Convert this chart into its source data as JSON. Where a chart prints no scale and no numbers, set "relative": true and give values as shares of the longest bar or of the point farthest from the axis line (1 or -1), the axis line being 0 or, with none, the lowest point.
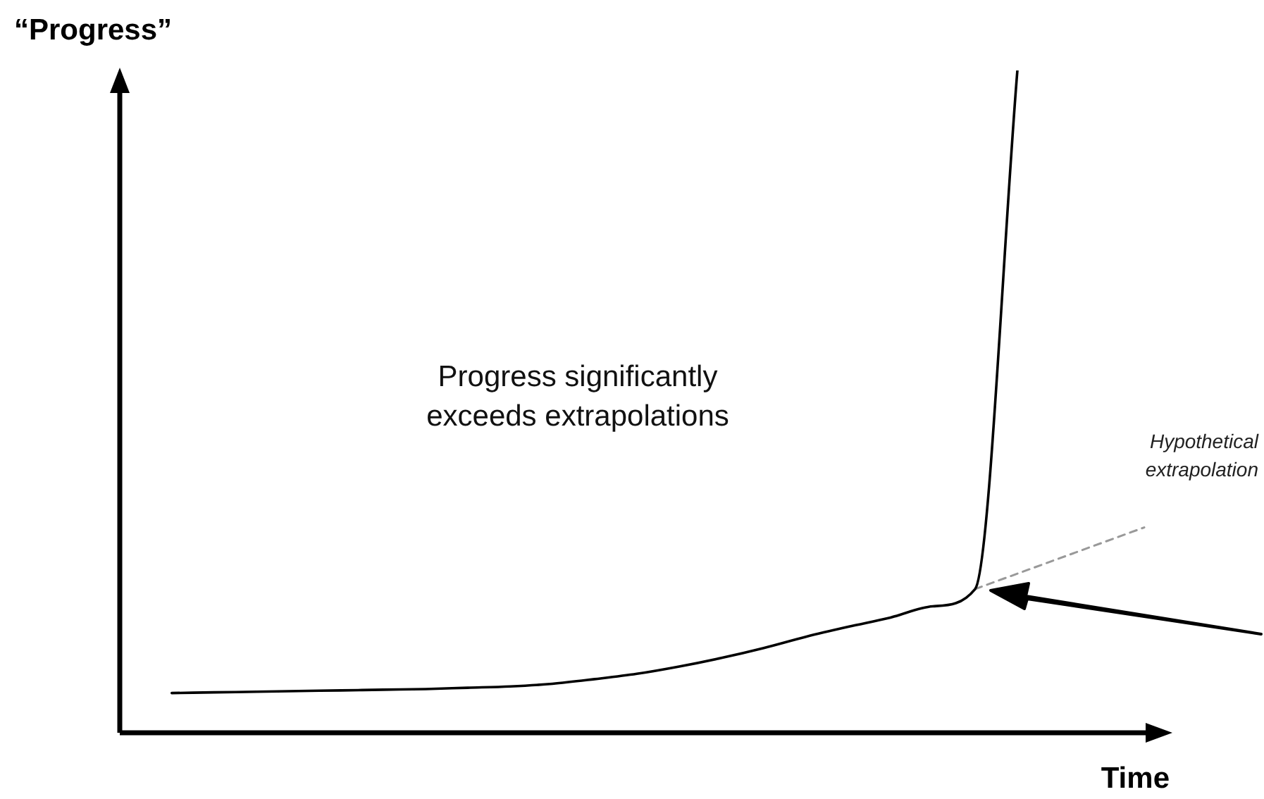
{
  "chart_data": {
    "type": "line",
    "relative": true,
    "ylabel": "“Progress”",
    "xlabel": "Time",
    "legend": false,
    "marker": "none",
    "categories": [
      null,
      null,
      null,
      null,
      null,
      null,
      null,
      null,
      null,
      null,
      null,
      null,
      null,
      null,
      null,
      null,
      null,
      null,
      null,
      null,
      null,
      null,
      null,
      null
    ],
    "series": [
      {
        "color": "#000000",
        "line_style": "solid",
        "values": [
          0.06,
          0.061,
          0.062,
          0.063,
          0.064,
          0.065,
          0.066,
          0.068,
          0.07,
          0.074,
          0.081,
          0.089,
          0.1,
          0.113,
          0.128,
          0.145,
          0.16,
          0.174,
          0.191,
          0.217,
          1,
          null,
          null,
          null
        ]
      },
      {
        "name": "Hypothetical extrapolation",
        "color": "#999999",
        "line_style": "dashed",
        "values": [
          null,
          null,
          null,
          null,
          null,
          null,
          null,
          null,
          null,
          null,
          null,
          null,
          null,
          null,
          null,
          null,
          null,
          null,
          null,
          0.217,
          null,
          null,
          null,
          0.31
        ]
      }
    ],
    "annotations": [
      "Progress significantly exceeds extrapolations"
    ]
  }
}
